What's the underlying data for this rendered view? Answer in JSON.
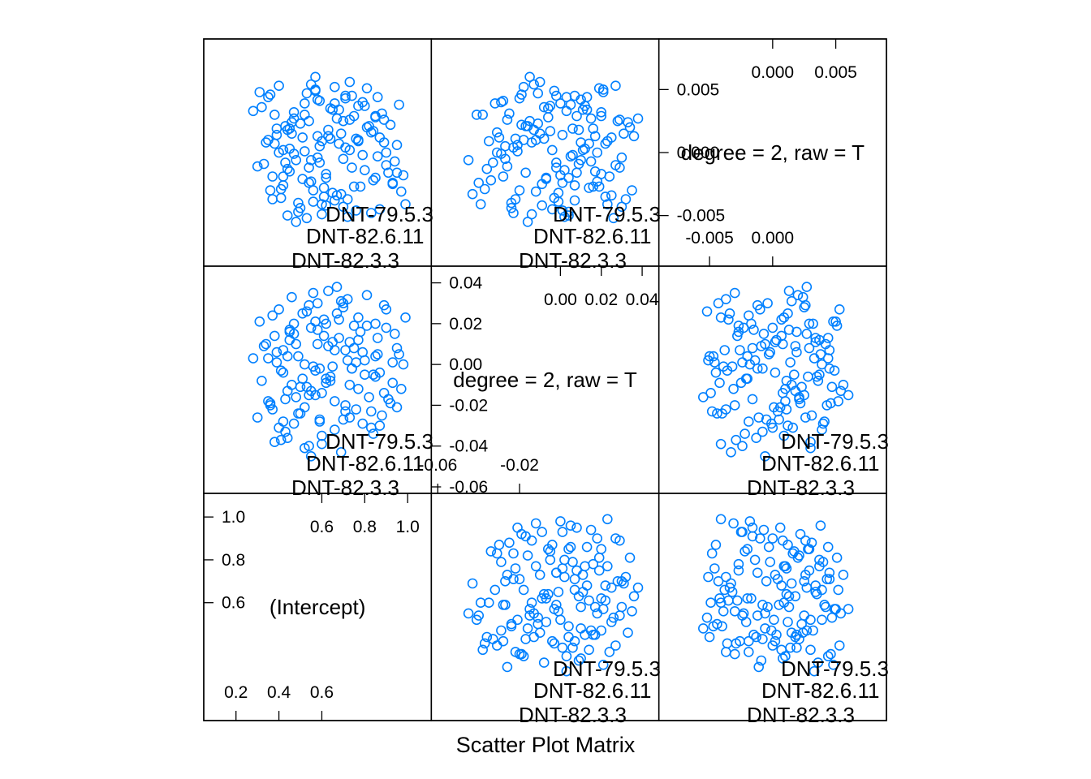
{
  "chart_data": {
    "type": "scatter",
    "subtype": "scatter-matrix",
    "xlabel": "Scatter Plot Matrix",
    "colors": {
      "points": "#0080ff",
      "frame": "#000000"
    },
    "variables": [
      {
        "name": "(Intercept)",
        "range": [
          0.08,
          1.08
        ],
        "low_ticks": [
          "0.2",
          "0.4",
          "0.6"
        ],
        "low_tick_values": [
          0.2,
          0.4,
          0.6
        ],
        "high_ticks": [
          "0.6",
          "0.8",
          "1.0"
        ],
        "high_tick_values": [
          0.6,
          0.8,
          1.0
        ]
      },
      {
        "name": "degree = 2, raw = T",
        "range": [
          -0.06,
          0.045
        ],
        "low_ticks": [
          "-0.06",
          "-0.02"
        ],
        "low_tick_values": [
          -0.06,
          -0.02
        ],
        "high_ticks": [
          "0.00",
          "0.02",
          "0.04"
        ],
        "high_tick_values": [
          0.0,
          0.02,
          0.04
        ],
        "y_axis_ticks": [
          "-0.06",
          "-0.04",
          "-0.02",
          "0.00",
          "0.02",
          "0.04"
        ],
        "y_axis_values": [
          -0.06,
          -0.04,
          -0.02,
          0.0,
          0.02,
          0.04
        ]
      },
      {
        "name": "degree = 2, raw = T",
        "range": [
          -0.0085,
          0.0085
        ],
        "low_ticks": [
          "-0.005",
          "0.000"
        ],
        "low_tick_values": [
          -0.005,
          0.0
        ],
        "high_ticks": [
          "0.000",
          "0.005"
        ],
        "high_tick_values": [
          0.0,
          0.005
        ],
        "y_axis_ticks": [
          "-0.005",
          "0.000",
          "0.005"
        ],
        "y_axis_values": [
          -0.005,
          0.0,
          0.005
        ]
      }
    ],
    "point_labels": [
      "DNT-79.5.3",
      "DNT-82.6.11",
      "DNT-82.3.3"
    ],
    "points": [
      [
        0.52,
        0.0,
        0.0039
      ],
      [
        0.9,
        0.018,
        0.0
      ],
      [
        0.64,
        -0.008,
        0.0011
      ],
      [
        0.31,
        0.021,
        0.0048
      ],
      [
        0.7,
        -0.027,
        -0.0005
      ],
      [
        0.44,
        -0.013,
        0.0018
      ],
      [
        0.85,
        0.004,
        -0.002
      ],
      [
        0.58,
        0.01,
        0.0042
      ],
      [
        0.36,
        -0.02,
        -0.003
      ],
      [
        0.99,
        0.023,
        -0.0041
      ],
      [
        0.47,
        0.015,
        0.0027
      ],
      [
        0.6,
        -0.035,
        0.0009
      ],
      [
        0.74,
        -0.002,
        -0.0012
      ],
      [
        0.4,
        0.027,
        0.0053
      ],
      [
        0.66,
        0.007,
        -0.0038
      ],
      [
        0.82,
        -0.016,
        0.0021
      ],
      [
        0.55,
        -0.045,
        -0.0006
      ],
      [
        0.28,
        0.003,
        0.0033
      ],
      [
        0.93,
        -0.009,
        -0.0025
      ],
      [
        0.69,
        0.031,
        0.0015
      ],
      [
        0.5,
        -0.024,
        -0.0044
      ],
      [
        0.77,
        0.012,
        0.0037
      ],
      [
        0.42,
        -0.004,
        0.0002
      ],
      [
        0.62,
        0.02,
        -0.0017
      ],
      [
        0.87,
        -0.03,
        0.0012
      ],
      [
        0.33,
        0.009,
        -0.0009
      ],
      [
        0.57,
        -0.015,
        0.006
      ],
      [
        0.72,
        0.002,
        -0.0051
      ],
      [
        0.46,
        0.033,
        0.0024
      ],
      [
        0.95,
        -0.021,
        0.0006
      ],
      [
        0.61,
        0.014,
        -0.0028
      ],
      [
        0.38,
        -0.038,
        0.003
      ],
      [
        0.79,
        0.006,
        -0.0002
      ],
      [
        0.53,
        -0.011,
        0.0047
      ],
      [
        0.67,
        0.025,
        -0.0034
      ],
      [
        0.84,
        -0.005,
        0.0017
      ],
      [
        0.45,
        0.017,
        -0.0015
      ],
      [
        0.59,
        -0.028,
        0.0041
      ],
      [
        0.76,
        0.001,
        -0.0046
      ],
      [
        0.35,
        -0.018,
        0.001
      ],
      [
        0.89,
        0.029,
        0.0026
      ],
      [
        0.51,
        -0.007,
        -0.0021
      ],
      [
        0.65,
        0.011,
        0.0034
      ],
      [
        0.43,
        -0.033,
        -0.0008
      ],
      [
        0.81,
        0.019,
        0.0051
      ],
      [
        0.56,
        -0.001,
        -0.0039
      ],
      [
        0.71,
        -0.023,
        0.0004
      ],
      [
        0.39,
        0.006,
        0.0019
      ],
      [
        0.97,
        -0.012,
        -0.0031
      ],
      [
        0.63,
        0.036,
        0.0013
      ],
      [
        0.48,
        -0.016,
        -0.0055
      ],
      [
        0.75,
        0.008,
        0.0029
      ],
      [
        0.3,
        -0.026,
        -0.0011
      ],
      [
        0.86,
        0.013,
        0.0044
      ],
      [
        0.54,
        -0.04,
        -0.0024
      ],
      [
        0.68,
        0.022,
        0.0007
      ],
      [
        0.41,
        -0.003,
        -0.0036
      ],
      [
        0.92,
        -0.019,
        0.0022
      ],
      [
        0.58,
        0.03,
        -0.0004
      ],
      [
        0.73,
        -0.01,
        0.0056
      ],
      [
        0.49,
        0.004,
        -0.0047
      ],
      [
        0.83,
        -0.031,
        0.0016
      ],
      [
        0.37,
        0.024,
        -0.0019
      ],
      [
        0.64,
        -0.006,
        0.0035
      ],
      [
        0.78,
        0.016,
        -0.0027
      ],
      [
        0.52,
        -0.021,
        0.0001
      ],
      [
        0.96,
        0.005,
        0.0038
      ],
      [
        0.44,
        -0.036,
        -0.0013
      ],
      [
        0.7,
        0.028,
        0.0025
      ],
      [
        0.6,
        -0.014,
        -0.0049
      ],
      [
        0.34,
        0.01,
        0.0008
      ],
      [
        0.88,
        -0.025,
        0.0031
      ],
      [
        0.55,
        0.018,
        -0.0023
      ],
      [
        0.74,
        -0.002,
        0.0045
      ],
      [
        0.47,
        -0.029,
        -0.0001
      ],
      [
        0.81,
        0.034,
        0.002
      ],
      [
        0.62,
        -0.009,
        -0.0042
      ],
      [
        0.39,
        0.001,
        0.0014
      ],
      [
        0.91,
        -0.017,
        -0.0016
      ],
      [
        0.57,
        0.021,
        0.005
      ],
      [
        0.69,
        -0.043,
        -0.0033
      ],
      [
        0.45,
        0.012,
        0.0003
      ],
      [
        0.85,
        -0.006,
        0.0028
      ],
      [
        0.53,
        0.026,
        -0.0052
      ],
      [
        0.76,
        -0.022,
        0.0011
      ],
      [
        0.42,
        0.007,
        -0.0026
      ],
      [
        0.66,
        -0.032,
        0.0039
      ],
      [
        0.94,
        0.015,
        -0.0007
      ],
      [
        0.5,
        -0.011,
        0.0023
      ],
      [
        0.72,
        0.032,
        -0.0037
      ],
      [
        0.36,
        -0.019,
        0.0046
      ],
      [
        0.8,
        0.002,
        -0.0014
      ],
      [
        0.59,
        -0.027,
        0.0005
      ],
      [
        0.47,
        0.02,
        0.0032
      ],
      [
        0.87,
        -0.004,
        -0.0045
      ],
      [
        0.63,
        0.009,
        0.0018
      ],
      [
        0.41,
        -0.037,
        -0.0029
      ],
      [
        0.77,
        0.023,
        0.0009
      ],
      [
        0.55,
        -0.013,
        0.0054
      ],
      [
        0.98,
        0.0,
        -0.0018
      ],
      [
        0.67,
        0.038,
        0.0027
      ],
      [
        0.49,
        -0.024,
        -0.004
      ],
      [
        0.73,
        0.011,
        0.0002
      ],
      [
        0.32,
        -0.008,
        0.0036
      ],
      [
        0.84,
        -0.034,
        -0.0022
      ],
      [
        0.58,
        0.017,
        0.0013
      ],
      [
        0.44,
        0.004,
        -0.005
      ],
      [
        0.71,
        -0.02,
        0.0043
      ],
      [
        0.9,
        0.027,
        -0.001
      ],
      [
        0.54,
        -0.015,
        0.0025
      ],
      [
        0.65,
        -0.001,
        -0.0032
      ],
      [
        0.38,
        0.014,
        0.0007
      ],
      [
        0.79,
        -0.029,
        0.004
      ],
      [
        0.61,
        0.022,
        -0.0035
      ],
      [
        0.46,
        -0.01,
        0.0015
      ],
      [
        0.86,
        0.005,
        -0.0003
      ],
      [
        0.52,
        -0.041,
        0.003
      ],
      [
        0.7,
        0.03,
        -0.0043
      ],
      [
        0.43,
        -0.017,
        0.0021
      ],
      [
        0.95,
        0.008,
        -0.0016
      ],
      [
        0.57,
        -0.003,
        0.0049
      ],
      [
        0.75,
        0.019,
        -0.0027
      ],
      [
        0.4,
        -0.031,
        0.0
      ],
      [
        0.68,
        0.013,
        0.0034
      ],
      [
        0.83,
        -0.023,
        -0.0048
      ],
      [
        0.51,
        0.025,
        0.0012
      ],
      [
        0.62,
        -0.007,
        -0.002
      ],
      [
        0.35,
        0.003,
        0.0044
      ],
      [
        0.89,
        -0.014,
        0.0008
      ],
      [
        0.56,
        0.035,
        -0.003
      ],
      [
        0.73,
        -0.026,
        0.0026
      ],
      [
        0.48,
        0.01,
        -0.0006
      ],
      [
        0.8,
        -0.005,
        0.0037
      ],
      [
        0.6,
        -0.039,
        -0.0041
      ],
      [
        0.45,
        0.016,
        0.0019
      ],
      [
        0.93,
        0.001,
        -0.0024
      ],
      [
        0.66,
        -0.018,
        0.0052
      ],
      [
        0.54,
        0.029,
        -0.0012
      ],
      [
        0.77,
        -0.012,
        0.001
      ],
      [
        0.37,
        -0.022,
        -0.0037
      ],
      [
        0.85,
        0.02,
        0.0029
      ],
      [
        0.59,
        -0.002,
        -0.0008
      ],
      [
        0.71,
        0.007,
        0.0045
      ],
      [
        0.42,
        -0.028,
        -0.0019
      ]
    ]
  }
}
